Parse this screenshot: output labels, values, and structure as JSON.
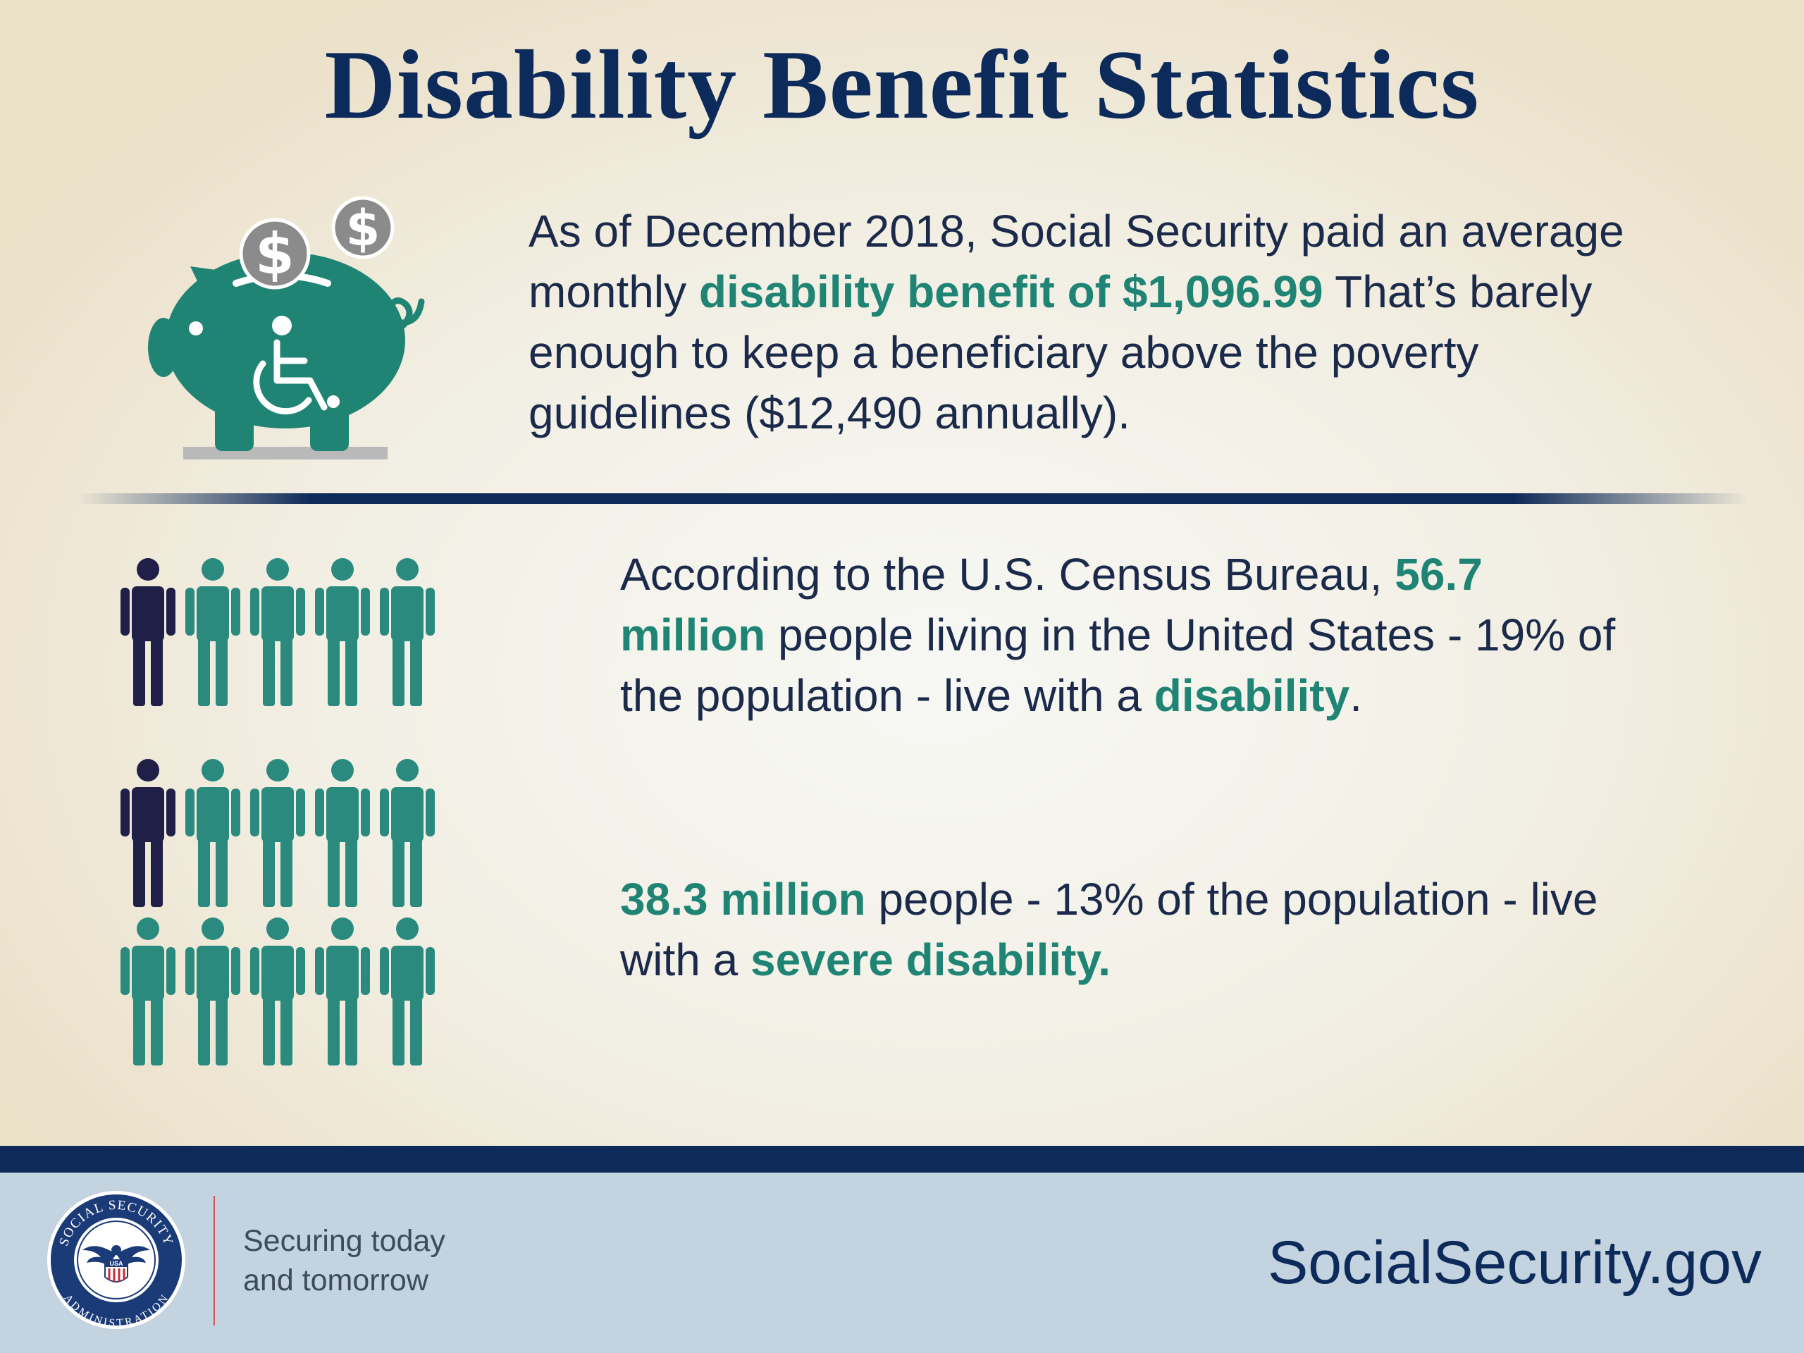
{
  "title": "Disability Benefit Statistics",
  "colors": {
    "navy": "#0c2a5a",
    "teal": "#1f8474",
    "person_dark": "#1f1f48",
    "person_teal": "#2a8a7e",
    "footer_bg": "#c4d3e0"
  },
  "stat_benefit": {
    "icon": "piggy-bank-wheelchair-icon",
    "text_1": "As of December 2018, Social Security paid an average monthly ",
    "highlight_1": "disability benefit of $1,096.99",
    "text_2": " That’s barely enough to keep a beneficiary above the poverty guidelines ($12,490 annually)."
  },
  "stat_census": {
    "text_1": "According to the U.S. Census Bureau, ",
    "highlight_1": "56.7 million",
    "text_2": " people living in the United States - 19% of the population - live with a ",
    "highlight_2": "disability",
    "text_3": ".",
    "pictogram": {
      "icon": "person-icon",
      "total": 5,
      "highlighted": 1,
      "fraction": 0.2
    }
  },
  "stat_severe": {
    "highlight_1": "38.3 million",
    "text_1": " people - 13% of the population - live with a ",
    "highlight_2": "severe disability.",
    "pictogram": {
      "icon": "person-icon",
      "total": 10,
      "highlighted": 1,
      "fraction": 0.1
    }
  },
  "footer": {
    "seal_icon": "social-security-administration-seal-icon",
    "seal_text_top": "SOCIAL SECURITY",
    "seal_text_bottom": "ADMINISTRATION",
    "seal_badge": "USA",
    "tagline_line1": "Securing today",
    "tagline_line2": "and tomorrow",
    "site": "SocialSecurity.gov"
  }
}
